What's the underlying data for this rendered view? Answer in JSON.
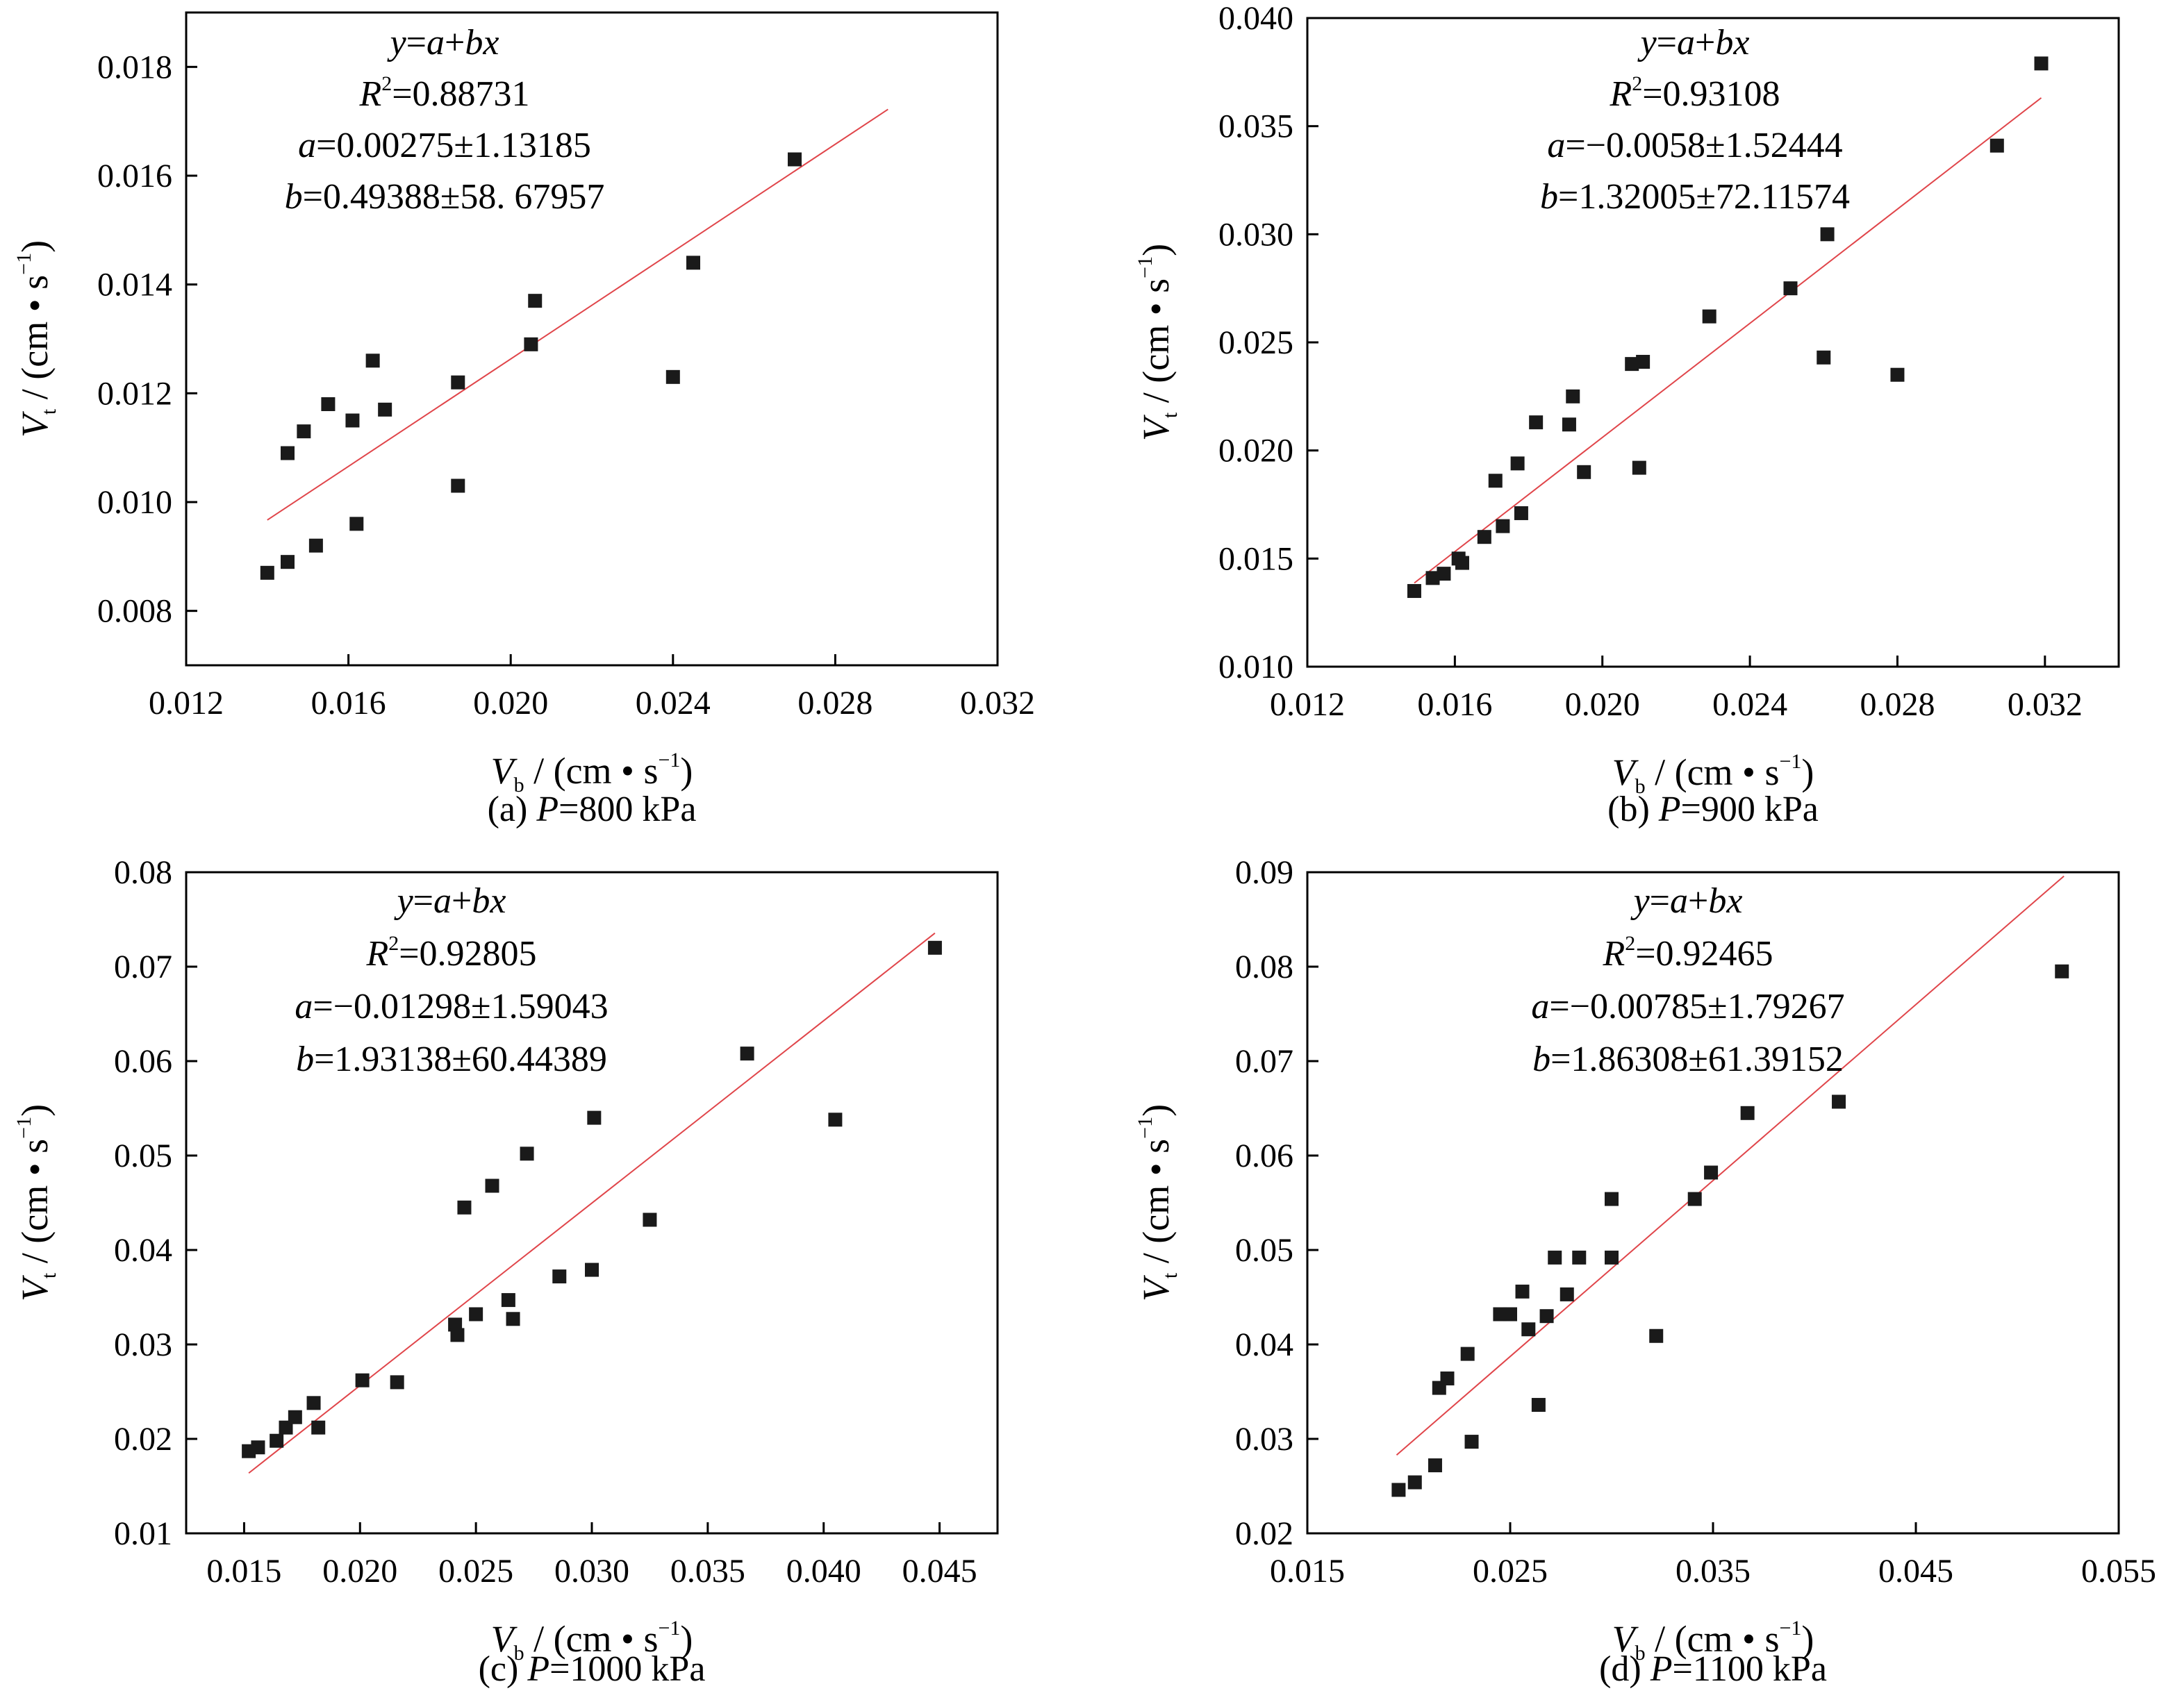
{
  "chart_data": [
    {
      "type": "scatter",
      "caption": {
        "prefix": "(a) ",
        "var": "P",
        "rest": "=800 kPa"
      },
      "xlim": [
        0.012,
        0.032
      ],
      "ylim": [
        0.007,
        0.019
      ],
      "xticks": [
        "0.012",
        "0.016",
        "0.020",
        "0.024",
        "0.028",
        "0.032"
      ],
      "yticks": [
        "0.008",
        "0.010",
        "0.012",
        "0.014",
        "0.016",
        "0.018"
      ],
      "xticks_v": [
        0.012,
        0.016,
        0.02,
        0.024,
        0.028,
        0.032
      ],
      "yticks_v": [
        0.008,
        0.01,
        0.012,
        0.014,
        0.016,
        0.018
      ],
      "fit": {
        "x": [
          0.014,
          0.0293
        ],
        "y": [
          0.00967,
          0.01722
        ]
      },
      "eq_lines": [
        [
          {
            "t": "y",
            "i": true
          },
          {
            "t": "="
          },
          {
            "t": "a",
            "i": true
          },
          {
            "t": "+"
          },
          {
            "t": "bx",
            "i": true
          }
        ],
        [
          {
            "t": "R",
            "i": true
          },
          {
            "t": "2",
            "sup": true
          },
          {
            "t": "=0.88731"
          }
        ],
        [
          {
            "t": "a",
            "i": true
          },
          {
            "t": "=0.00275±1.13185"
          }
        ],
        [
          {
            "t": "b",
            "i": true
          },
          {
            "t": "=0.49388±58. 67957"
          }
        ]
      ],
      "x": [
        0.014,
        0.0145,
        0.0145,
        0.0149,
        0.0152,
        0.0155,
        0.0161,
        0.0162,
        0.0166,
        0.0169,
        0.0187,
        0.0187,
        0.0205,
        0.0206,
        0.024,
        0.0245,
        0.027
      ],
      "y": [
        0.0087,
        0.0089,
        0.0109,
        0.0113,
        0.0092,
        0.0118,
        0.0115,
        0.0096,
        0.0126,
        0.0117,
        0.0122,
        0.0103,
        0.0129,
        0.0137,
        0.0123,
        0.0144,
        0.0163
      ]
    },
    {
      "type": "scatter",
      "caption": {
        "prefix": "(b) ",
        "var": "P",
        "rest": "=900 kPa"
      },
      "xlim": [
        0.012,
        0.034
      ],
      "ylim": [
        0.01,
        0.04
      ],
      "xticks": [
        "0.012",
        "0.016",
        "0.020",
        "0.024",
        "0.028",
        "0.032"
      ],
      "yticks": [
        "0.010",
        "0.015",
        "0.020",
        "0.025",
        "0.030",
        "0.035",
        "0.040"
      ],
      "xticks_v": [
        0.012,
        0.016,
        0.02,
        0.024,
        0.028,
        0.032
      ],
      "yticks_v": [
        0.01,
        0.015,
        0.02,
        0.025,
        0.03,
        0.035,
        0.04
      ],
      "fit": {
        "x": [
          0.0149,
          0.0319
        ],
        "y": [
          0.01387,
          0.03631
        ]
      },
      "eq_lines": [
        [
          {
            "t": "y",
            "i": true
          },
          {
            "t": "="
          },
          {
            "t": "a",
            "i": true
          },
          {
            "t": "+"
          },
          {
            "t": "bx",
            "i": true
          }
        ],
        [
          {
            "t": "R",
            "i": true
          },
          {
            "t": "2",
            "sup": true
          },
          {
            "t": "=0.93108"
          }
        ],
        [
          {
            "t": "a",
            "i": true
          },
          {
            "t": "=−0.0058±1.52444"
          }
        ],
        [
          {
            "t": "b",
            "i": true
          },
          {
            "t": "=1.32005±72.11574"
          }
        ]
      ],
      "x": [
        0.0149,
        0.0154,
        0.0157,
        0.0161,
        0.0162,
        0.0168,
        0.0171,
        0.0173,
        0.0177,
        0.0178,
        0.0182,
        0.0191,
        0.0192,
        0.0195,
        0.0208,
        0.021,
        0.0211,
        0.0229,
        0.0251,
        0.026,
        0.0261,
        0.028,
        0.0307,
        0.0319
      ],
      "y": [
        0.0135,
        0.0141,
        0.0143,
        0.015,
        0.0148,
        0.016,
        0.0186,
        0.0165,
        0.0194,
        0.0171,
        0.0213,
        0.0212,
        0.0225,
        0.019,
        0.024,
        0.0192,
        0.0241,
        0.0262,
        0.0275,
        0.0243,
        0.03,
        0.0235,
        0.0341,
        0.0379
      ]
    },
    {
      "type": "scatter",
      "caption": {
        "prefix": "(c) ",
        "var": "P",
        "rest": "=1000 kPa"
      },
      "xlim": [
        0.0125,
        0.0475
      ],
      "ylim": [
        0.01,
        0.08
      ],
      "xticks": [
        "0.015",
        "0.020",
        "0.025",
        "0.030",
        "0.035",
        "0.040",
        "0.045"
      ],
      "yticks": [
        "0.01",
        "0.02",
        "0.03",
        "0.04",
        "0.05",
        "0.06",
        "0.07",
        "0.08"
      ],
      "xticks_v": [
        0.015,
        0.02,
        0.025,
        0.03,
        0.035,
        0.04,
        0.045
      ],
      "yticks_v": [
        0.01,
        0.02,
        0.03,
        0.04,
        0.05,
        0.06,
        0.07,
        0.08
      ],
      "fit": {
        "x": [
          0.0152,
          0.0448
        ],
        "y": [
          0.01638,
          0.07355
        ]
      },
      "eq_lines": [
        [
          {
            "t": "y",
            "i": true
          },
          {
            "t": "="
          },
          {
            "t": "a",
            "i": true
          },
          {
            "t": "+"
          },
          {
            "t": "bx",
            "i": true
          }
        ],
        [
          {
            "t": "R",
            "i": true
          },
          {
            "t": "2",
            "sup": true
          },
          {
            "t": "=0.92805"
          }
        ],
        [
          {
            "t": "a",
            "i": true
          },
          {
            "t": "=−0.01298±1.59043"
          }
        ],
        [
          {
            "t": "b",
            "i": true
          },
          {
            "t": "=1.93138±60.44389"
          }
        ]
      ],
      "x": [
        0.0152,
        0.0156,
        0.0164,
        0.0168,
        0.0172,
        0.018,
        0.0182,
        0.0201,
        0.0216,
        0.0241,
        0.0242,
        0.0245,
        0.025,
        0.0257,
        0.0264,
        0.0266,
        0.0272,
        0.0286,
        0.03,
        0.0301,
        0.0325,
        0.0367,
        0.0405,
        0.0448
      ],
      "y": [
        0.0187,
        0.0191,
        0.0198,
        0.0212,
        0.0223,
        0.0238,
        0.0212,
        0.0262,
        0.026,
        0.0321,
        0.031,
        0.0445,
        0.0332,
        0.0468,
        0.0347,
        0.0327,
        0.0502,
        0.0372,
        0.0379,
        0.054,
        0.0432,
        0.0608,
        0.0538,
        0.072
      ]
    },
    {
      "type": "scatter",
      "caption": {
        "prefix": "(d) ",
        "var": "P",
        "rest": "=1100 kPa"
      },
      "xlim": [
        0.015,
        0.055
      ],
      "ylim": [
        0.02,
        0.09
      ],
      "xticks": [
        "0.015",
        "0.025",
        "0.035",
        "0.045",
        "0.055"
      ],
      "yticks": [
        "0.02",
        "0.03",
        "0.04",
        "0.05",
        "0.06",
        "0.07",
        "0.08",
        "0.09"
      ],
      "xticks_v": [
        0.015,
        0.025,
        0.035,
        0.045,
        0.055
      ],
      "yticks_v": [
        0.02,
        0.03,
        0.04,
        0.05,
        0.06,
        0.07,
        0.08,
        0.09
      ],
      "fit": {
        "x": [
          0.0194,
          0.0523
        ],
        "y": [
          0.02829,
          0.08959
        ]
      },
      "eq_lines": [
        [
          {
            "t": "y",
            "i": true
          },
          {
            "t": "="
          },
          {
            "t": "a",
            "i": true
          },
          {
            "t": "+"
          },
          {
            "t": "bx",
            "i": true
          }
        ],
        [
          {
            "t": "R",
            "i": true
          },
          {
            "t": "2",
            "sup": true
          },
          {
            "t": "=0.92465"
          }
        ],
        [
          {
            "t": "a",
            "i": true
          },
          {
            "t": "=−0.00785±1.79267"
          }
        ],
        [
          {
            "t": "b",
            "i": true
          },
          {
            "t": "=1.86308±61.39152"
          }
        ]
      ],
      "x": [
        0.0195,
        0.0203,
        0.0213,
        0.0215,
        0.0219,
        0.0229,
        0.0231,
        0.0245,
        0.025,
        0.0256,
        0.0259,
        0.0264,
        0.0268,
        0.0272,
        0.0278,
        0.0284,
        0.03,
        0.03,
        0.0322,
        0.0341,
        0.0349,
        0.0367,
        0.0412,
        0.0522
      ],
      "y": [
        0.0246,
        0.0254,
        0.0272,
        0.0354,
        0.0364,
        0.039,
        0.0297,
        0.0432,
        0.0432,
        0.0456,
        0.0416,
        0.0336,
        0.043,
        0.0492,
        0.0453,
        0.0492,
        0.0554,
        0.0492,
        0.0409,
        0.0554,
        0.0582,
        0.0645,
        0.0657,
        0.0795
      ]
    }
  ],
  "axis_labels": {
    "x": {
      "var": "V",
      "sub": "b",
      "unit": "(cm • s",
      "exp": "−1",
      "close": ")"
    },
    "y": {
      "var": "V",
      "sub": "t",
      "unit": "(cm • s",
      "exp": "−1",
      "close": ")"
    }
  },
  "colors": {
    "fit_line": "#e0454a",
    "marker": "#1a1a1a",
    "axis": "#000000"
  }
}
